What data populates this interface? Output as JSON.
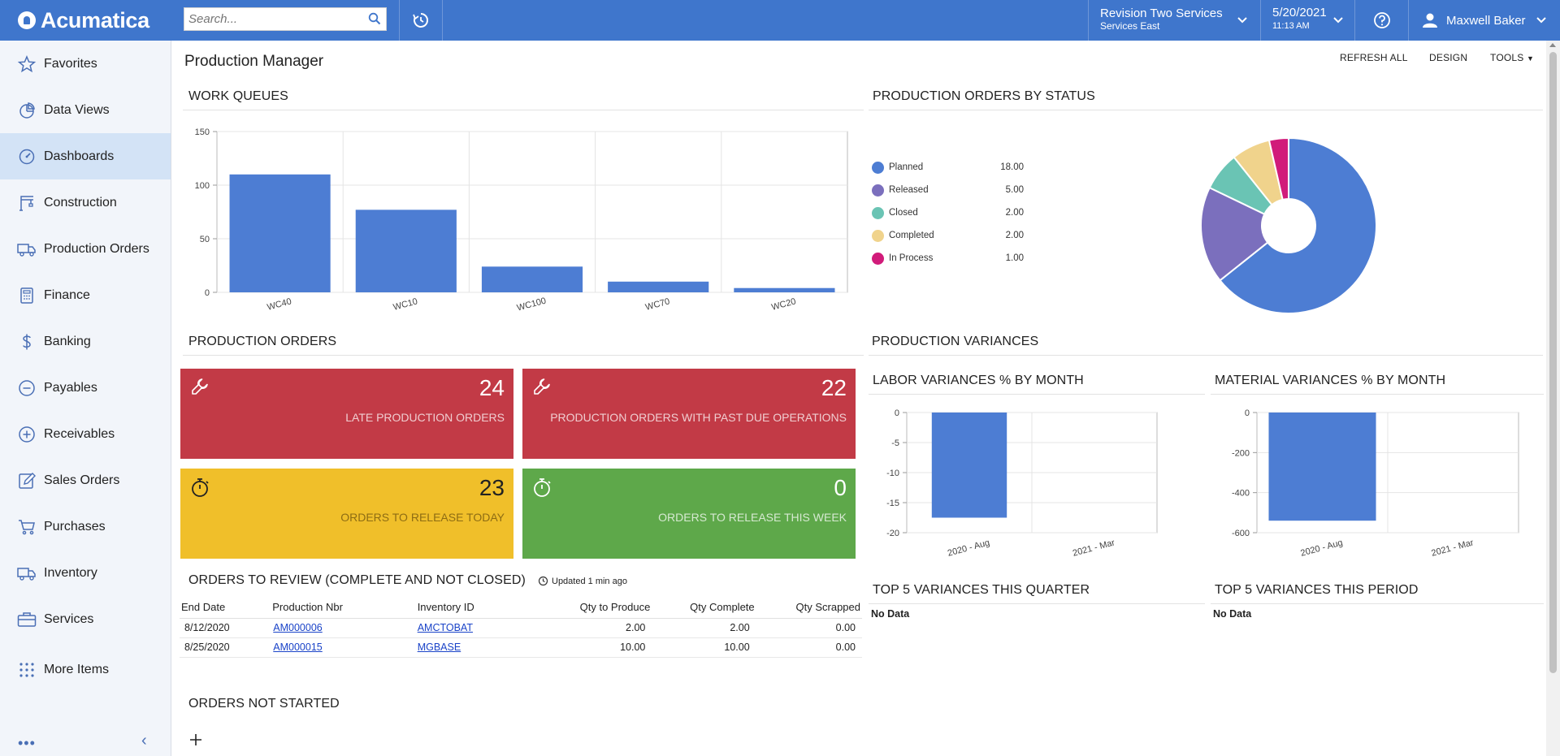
{
  "app": {
    "logo": "Acumatica"
  },
  "search": {
    "placeholder": "Search..."
  },
  "branch": {
    "name": "Revision Two Services",
    "sub": "Services East"
  },
  "datetime": {
    "date": "5/20/2021",
    "time": "11:13 AM"
  },
  "user": {
    "name": "Maxwell Baker"
  },
  "sidebar": {
    "items": [
      {
        "label": "Favorites",
        "icon": "star-icon"
      },
      {
        "label": "Data Views",
        "icon": "pie-icon"
      },
      {
        "label": "Dashboards",
        "icon": "gauge-icon"
      },
      {
        "label": "Construction",
        "icon": "crane-icon"
      },
      {
        "label": "Production Orders",
        "icon": "truck-icon"
      },
      {
        "label": "Finance",
        "icon": "calculator-icon"
      },
      {
        "label": "Banking",
        "icon": "dollar-icon"
      },
      {
        "label": "Payables",
        "icon": "minus-circle-icon"
      },
      {
        "label": "Receivables",
        "icon": "plus-circle-icon"
      },
      {
        "label": "Sales Orders",
        "icon": "pencil-icon"
      },
      {
        "label": "Purchases",
        "icon": "cart-icon"
      },
      {
        "label": "Inventory",
        "icon": "truck-icon"
      },
      {
        "label": "Services",
        "icon": "briefcase-icon"
      },
      {
        "label": "More Items",
        "icon": "grid-dots-icon"
      }
    ],
    "active": "Dashboards"
  },
  "page": {
    "title": "Production Manager"
  },
  "toolbar": {
    "refresh": "REFRESH ALL",
    "design": "DESIGN",
    "tools": "TOOLS"
  },
  "sections": {
    "work_queues": "WORK QUEUES",
    "prod_by_status": "PRODUCTION ORDERS BY STATUS",
    "production_orders": "PRODUCTION ORDERS",
    "production_variances": "PRODUCTION VARIANCES",
    "labor_variances": "LABOR VARIANCES % BY MONTH",
    "material_variances": "MATERIAL VARIANCES % BY MONTH",
    "orders_to_review": "ORDERS TO REVIEW (COMPLETE AND NOT CLOSED)",
    "orders_to_review_updated": "Updated 1 min ago",
    "top5_quarter": "TOP 5 VARIANCES THIS QUARTER",
    "top5_period": "TOP 5 VARIANCES THIS PERIOD",
    "orders_not_started": "ORDERS NOT STARTED",
    "no_data": "No Data"
  },
  "tiles": [
    {
      "value": "24",
      "label": "LATE PRODUCTION ORDERS",
      "color": "#c23a46",
      "icon": "wrench-icon"
    },
    {
      "value": "22",
      "label": "PRODUCTION ORDERS WITH PAST DUE OPERATIONS",
      "color": "#c23a46",
      "icon": "wrench-icon"
    },
    {
      "value": "23",
      "label": "ORDERS TO RELEASE TODAY",
      "color": "#f0bf2a",
      "icon": "stopwatch-icon"
    },
    {
      "value": "0",
      "label": "ORDERS TO RELEASE THIS WEEK",
      "color": "#5ea84a",
      "icon": "stopwatch-icon"
    }
  ],
  "review_table": {
    "columns": [
      "End Date",
      "Production Nbr",
      "Inventory ID",
      "Qty to Produce",
      "Qty Complete",
      "Qty Scrapped"
    ],
    "rows": [
      [
        "8/12/2020",
        "AM000006",
        "AMCTOBAT",
        "2.00",
        "2.00",
        "0.00"
      ],
      [
        "8/25/2020",
        "AM000015",
        "MGBASE",
        "10.00",
        "10.00",
        "0.00"
      ]
    ]
  },
  "chart_data": [
    {
      "type": "bar",
      "title": "WORK QUEUES",
      "categories": [
        "WC40",
        "WC10",
        "WC100",
        "WC70",
        "WC20"
      ],
      "values": [
        110,
        77,
        24,
        10,
        4
      ],
      "ylim": [
        0,
        150
      ],
      "yticks": [
        "0",
        "50",
        "100",
        "150"
      ],
      "color": "#4d7dd3"
    },
    {
      "type": "pie",
      "title": "PRODUCTION ORDERS BY STATUS",
      "labels": [
        "Planned",
        "Released",
        "Closed",
        "Completed",
        "In Process"
      ],
      "values": [
        18,
        5,
        2,
        2,
        1
      ],
      "value_labels": [
        "18.00",
        "5.00",
        "2.00",
        "2.00",
        "1.00"
      ],
      "colors": [
        "#4d7dd3",
        "#7b6fbd",
        "#6ac4b4",
        "#f0d38c",
        "#d11b7a"
      ],
      "legend": "left"
    },
    {
      "type": "bar",
      "title": "LABOR VARIANCES % BY MONTH",
      "categories": [
        "2020 - Aug",
        "2021 - Mar"
      ],
      "values": [
        -17.5,
        0
      ],
      "ylim": [
        -20,
        0
      ],
      "yticks": [
        "0",
        "-5",
        "-10",
        "-15",
        "-20"
      ],
      "color": "#4d7dd3"
    },
    {
      "type": "bar",
      "title": "MATERIAL VARIANCES % BY MONTH",
      "categories": [
        "2020 - Aug",
        "2021 - Mar"
      ],
      "values": [
        -540,
        0
      ],
      "ylim": [
        -600,
        0
      ],
      "yticks": [
        "0",
        "-200",
        "-400",
        "-600"
      ],
      "color": "#4d7dd3"
    }
  ]
}
